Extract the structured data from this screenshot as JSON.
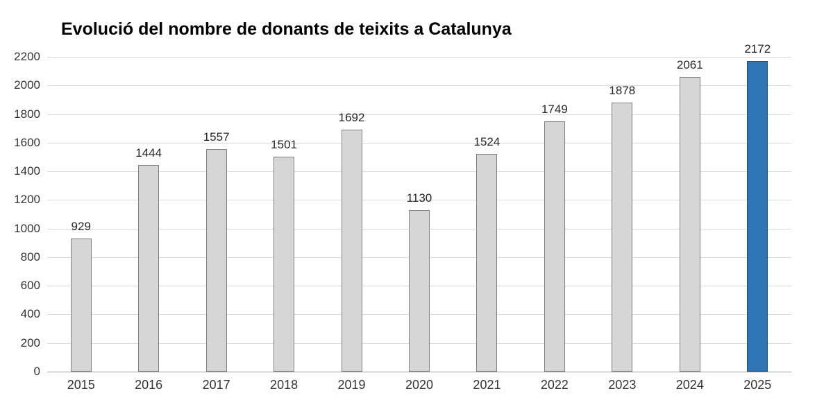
{
  "chart_data": {
    "type": "bar",
    "title": "Evolució del nombre de donants de teixits a Catalunya",
    "categories": [
      "2015",
      "2016",
      "2017",
      "2018",
      "2019",
      "2020",
      "2021",
      "2022",
      "2023",
      "2024",
      "2025"
    ],
    "values": [
      929,
      1444,
      1557,
      1501,
      1692,
      1130,
      1524,
      1749,
      1878,
      2061,
      2172
    ],
    "xlabel": "",
    "ylabel": "",
    "ylim": [
      0,
      2200
    ],
    "yticks": [
      0,
      200,
      400,
      600,
      800,
      1000,
      1200,
      1400,
      1600,
      1800,
      2000,
      2200
    ],
    "grid": true,
    "legend": "none",
    "value_labels": true,
    "highlight_category": "2025",
    "colors": {
      "bar_fill": "#d6d6d6",
      "bar_border": "#808080",
      "highlight_fill": "#2e75b6",
      "highlight_border": "#1f4e79",
      "gridline": "#d9d9d9",
      "axis_line": "#9e9e9e",
      "tick_text": "#333333",
      "value_text": "#262626",
      "title_text": "#000000"
    }
  }
}
